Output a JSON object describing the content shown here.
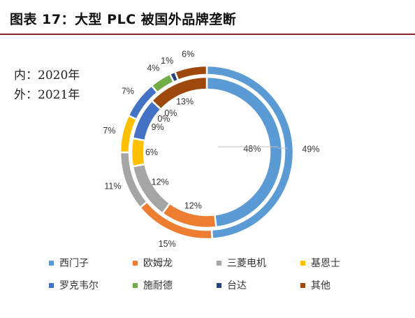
{
  "title": "图表 17：大型 PLC 被国外品牌垄断",
  "note": {
    "inner": "内：2020年",
    "outer": "外：2021年"
  },
  "chart_data": {
    "type": "donut",
    "categories": [
      "西门子",
      "欧姆龙",
      "三菱电机",
      "基恩士",
      "罗克韦尔",
      "施耐德",
      "台达",
      "其他"
    ],
    "colors": [
      "#5b9bd5",
      "#ed7d31",
      "#a5a5a5",
      "#ffc000",
      "#4472c4",
      "#70ad47",
      "#264478",
      "#9e480e"
    ],
    "series": [
      {
        "name": "2020年",
        "ring": "inner",
        "values": [
          48,
          12,
          12,
          6,
          9,
          0,
          0,
          13
        ],
        "labels": [
          "48%",
          "12%",
          "12%",
          "6%",
          "9%",
          "0%",
          "0%",
          "13%"
        ]
      },
      {
        "name": "2021年",
        "ring": "outer",
        "values": [
          49,
          15,
          11,
          7,
          7,
          4,
          1,
          6
        ],
        "labels": [
          "49%",
          "15%",
          "11%",
          "7%",
          "7%",
          "4%",
          "1%",
          "6%"
        ]
      }
    ],
    "legend": "bottom"
  }
}
